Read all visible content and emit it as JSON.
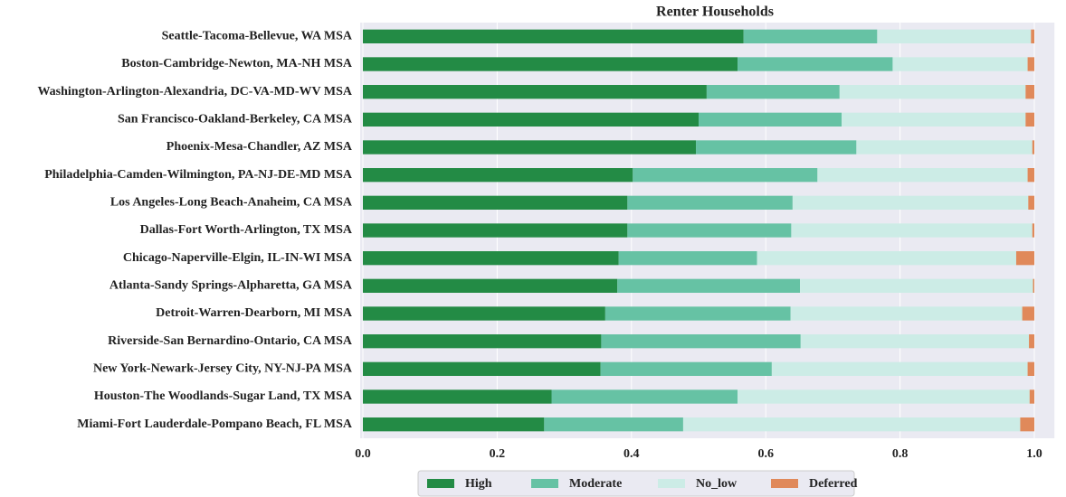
{
  "chart_data": {
    "type": "stacked_barh",
    "title": "Renter Households",
    "categories": [
      "Seattle-Tacoma-Bellevue, WA MSA",
      "Boston-Cambridge-Newton, MA-NH MSA",
      "Washington-Arlington-Alexandria, DC-VA-MD-WV MSA",
      "San Francisco-Oakland-Berkeley, CA MSA",
      "Phoenix-Mesa-Chandler, AZ MSA",
      "Philadelphia-Camden-Wilmington, PA-NJ-DE-MD MSA",
      "Los Angeles-Long Beach-Anaheim, CA MSA",
      "Dallas-Fort Worth-Arlington, TX MSA",
      "Chicago-Naperville-Elgin, IL-IN-WI MSA",
      "Atlanta-Sandy Springs-Alpharetta, GA MSA",
      "Detroit-Warren-Dearborn, MI MSA",
      "Riverside-San Bernardino-Ontario, CA MSA",
      "New York-Newark-Jersey City, NY-NJ-PA MSA",
      "Houston-The Woodlands-Sugar Land, TX MSA",
      "Miami-Fort Lauderdale-Pompano Beach, FL MSA"
    ],
    "series": [
      {
        "name": "High",
        "color": "#238b45",
        "values": [
          0.567,
          0.558,
          0.512,
          0.5,
          0.496,
          0.402,
          0.394,
          0.394,
          0.381,
          0.379,
          0.361,
          0.355,
          0.354,
          0.281,
          0.27
        ]
      },
      {
        "name": "Moderate",
        "color": "#66c2a4",
        "values": [
          0.199,
          0.231,
          0.198,
          0.213,
          0.239,
          0.275,
          0.246,
          0.244,
          0.206,
          0.272,
          0.276,
          0.297,
          0.255,
          0.277,
          0.207
        ]
      },
      {
        "name": "No_low",
        "color": "#ccece6",
        "values": [
          0.229,
          0.201,
          0.277,
          0.274,
          0.262,
          0.313,
          0.351,
          0.359,
          0.386,
          0.347,
          0.345,
          0.34,
          0.381,
          0.435,
          0.502
        ]
      },
      {
        "name": "Deferred",
        "color": "#e0895a",
        "values": [
          0.005,
          0.01,
          0.013,
          0.013,
          0.003,
          0.01,
          0.009,
          0.003,
          0.027,
          0.002,
          0.018,
          0.008,
          0.01,
          0.007,
          0.021
        ]
      }
    ],
    "xlim": [
      0,
      1.03
    ],
    "xticks": [
      {
        "value": 0,
        "label": "0.0"
      },
      0.2,
      0.4,
      0.6,
      0.8,
      {
        "value": 1,
        "label": "1.0"
      }
    ],
    "grid": true,
    "legend": "bottom"
  }
}
